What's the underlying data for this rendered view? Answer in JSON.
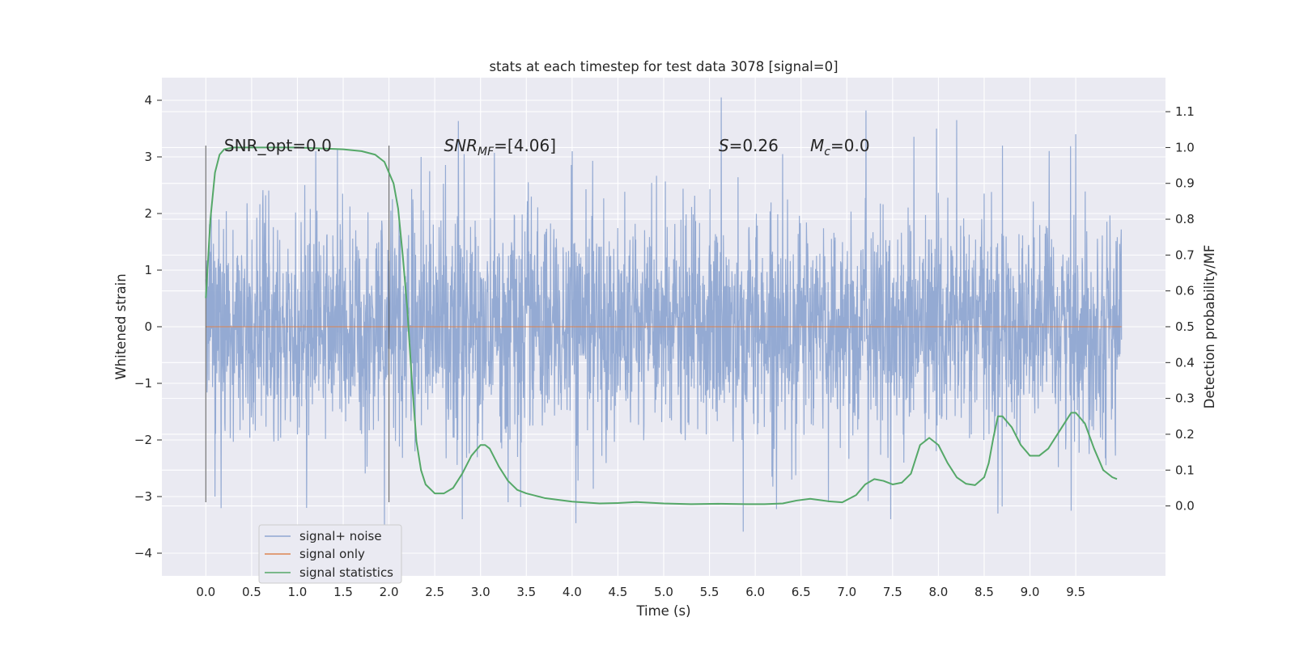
{
  "chart_data": {
    "type": "line",
    "title": "stats at each timestep for test data 3078 [signal=0]",
    "xlabel": "Time (s)",
    "ylabel": "Whitened strain",
    "y2label": "Detection probability/MF",
    "xlim": [
      -0.48,
      10.48
    ],
    "ylim": [
      -4.4,
      4.4
    ],
    "y2lim": [
      -0.195,
      1.195
    ],
    "x_ticks": [
      "0.0",
      "0.5",
      "1.0",
      "1.5",
      "2.0",
      "2.5",
      "3.0",
      "3.5",
      "4.0",
      "4.5",
      "5.0",
      "5.5",
      "6.0",
      "6.5",
      "7.0",
      "7.5",
      "8.0",
      "8.5",
      "9.0",
      "9.5"
    ],
    "y_ticks": [
      "4",
      "3",
      "2",
      "1",
      "0",
      "−1",
      "−2",
      "−3",
      "−4"
    ],
    "y2_ticks": [
      "1.1",
      "1.0",
      "0.9",
      "0.8",
      "0.7",
      "0.6",
      "0.5",
      "0.4",
      "0.3",
      "0.2",
      "0.1",
      "0.0"
    ],
    "grid": true,
    "legend_position": "lower-left",
    "annotations": [
      {
        "text": "SNR_opt=0.0",
        "x": 0.2,
        "y": 3.2
      },
      {
        "text": "SNR_MF=[4.06]",
        "x": 2.6,
        "y": 3.2
      },
      {
        "text": "S=0.26",
        "x": 5.6,
        "y": 3.2
      },
      {
        "text": "M_c=0.0",
        "x": 6.6,
        "y": 3.2
      }
    ],
    "vlines": [
      {
        "x": 0.0,
        "ymin": -3.1,
        "ymax": 3.2
      },
      {
        "x": 2.0,
        "ymin": -3.1,
        "ymax": 3.2
      }
    ],
    "series": [
      {
        "name": "signal+ noise",
        "axis": "left",
        "color": "#8fa6d1",
        "x_range": [
          0.0,
          10.0
        ],
        "envelope": {
          "typical_upper": 2.1,
          "typical_lower": -2.1,
          "max": 4.05,
          "min": -3.62
        },
        "peaks": [
          {
            "x": 1.2,
            "y": 3.1
          },
          {
            "x": 2.35,
            "y": 3.0
          },
          {
            "x": 2.82,
            "y": 3.05
          },
          {
            "x": 5.63,
            "y": 4.05
          },
          {
            "x": 7.21,
            "y": 3.82
          },
          {
            "x": 7.98,
            "y": 3.5
          },
          {
            "x": 8.2,
            "y": 3.65
          },
          {
            "x": 9.5,
            "y": 3.4
          },
          {
            "x": 4.0,
            "y": 3.1
          },
          {
            "x": 6.3,
            "y": 3.05
          },
          {
            "x": 8.7,
            "y": 3.2
          }
        ],
        "troughs": [
          {
            "x": 1.95,
            "y": -3.5
          },
          {
            "x": 2.8,
            "y": -3.4
          },
          {
            "x": 4.04,
            "y": -3.47
          },
          {
            "x": 5.87,
            "y": -3.62
          },
          {
            "x": 7.48,
            "y": -3.4
          },
          {
            "x": 8.65,
            "y": -3.3
          },
          {
            "x": 0.1,
            "y": -3.0
          },
          {
            "x": 1.1,
            "y": -3.2
          },
          {
            "x": 3.3,
            "y": -3.1
          },
          {
            "x": 6.8,
            "y": -3.1
          },
          {
            "x": 9.45,
            "y": -3.25
          }
        ]
      },
      {
        "name": "signal only",
        "axis": "left",
        "color": "#dd8452",
        "x": [
          0.0,
          10.0
        ],
        "values": [
          0.0,
          0.0
        ]
      },
      {
        "name": "signal statistics",
        "axis": "right",
        "color": "#55a868",
        "x": [
          0.0,
          0.05,
          0.1,
          0.15,
          0.2,
          0.3,
          0.5,
          0.8,
          1.0,
          1.2,
          1.5,
          1.7,
          1.85,
          1.95,
          2.0,
          2.05,
          2.1,
          2.15,
          2.2,
          2.25,
          2.3,
          2.35,
          2.4,
          2.5,
          2.6,
          2.7,
          2.8,
          2.9,
          3.0,
          3.05,
          3.1,
          3.2,
          3.3,
          3.4,
          3.5,
          3.7,
          4.0,
          4.3,
          4.5,
          4.7,
          5.0,
          5.3,
          5.6,
          5.9,
          6.1,
          6.3,
          6.45,
          6.6,
          6.8,
          6.95,
          7.1,
          7.2,
          7.3,
          7.4,
          7.5,
          7.6,
          7.7,
          7.8,
          7.9,
          8.0,
          8.1,
          8.2,
          8.3,
          8.4,
          8.5,
          8.55,
          8.6,
          8.65,
          8.7,
          8.8,
          8.9,
          9.0,
          9.1,
          9.2,
          9.3,
          9.4,
          9.45,
          9.5,
          9.6,
          9.7,
          9.8,
          9.9,
          9.95
        ],
        "values": [
          0.58,
          0.8,
          0.93,
          0.98,
          0.995,
          1.0,
          1.0,
          1.0,
          1.0,
          0.998,
          0.995,
          0.99,
          0.98,
          0.96,
          0.93,
          0.9,
          0.83,
          0.7,
          0.55,
          0.35,
          0.18,
          0.1,
          0.06,
          0.035,
          0.035,
          0.05,
          0.09,
          0.14,
          0.17,
          0.17,
          0.16,
          0.11,
          0.07,
          0.045,
          0.035,
          0.022,
          0.012,
          0.007,
          0.008,
          0.011,
          0.007,
          0.005,
          0.006,
          0.005,
          0.005,
          0.007,
          0.015,
          0.02,
          0.013,
          0.01,
          0.03,
          0.06,
          0.075,
          0.07,
          0.06,
          0.065,
          0.09,
          0.17,
          0.19,
          0.17,
          0.12,
          0.08,
          0.062,
          0.058,
          0.08,
          0.12,
          0.19,
          0.25,
          0.25,
          0.22,
          0.17,
          0.14,
          0.14,
          0.16,
          0.2,
          0.24,
          0.26,
          0.26,
          0.23,
          0.16,
          0.1,
          0.08,
          0.075
        ]
      }
    ]
  }
}
